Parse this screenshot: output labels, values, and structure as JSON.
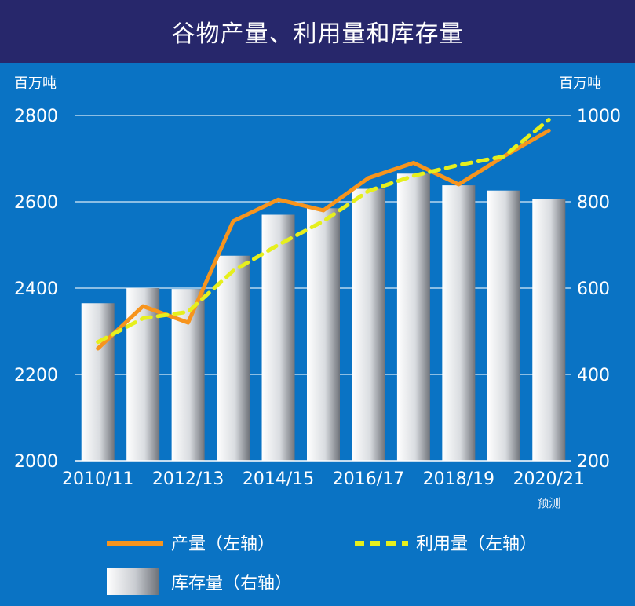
{
  "chart_data": {
    "type": "bar",
    "title": "谷物产量、利用量和库存量",
    "left_unit": "百万吨",
    "right_unit": "百万吨",
    "left_ylim": [
      2000,
      2800
    ],
    "right_ylim": [
      200,
      1000
    ],
    "left_ticks": [
      "2000",
      "2200",
      "2400",
      "2600",
      "2800"
    ],
    "right_ticks": [
      "200",
      "400",
      "600",
      "800",
      "1000"
    ],
    "grid": true,
    "legend_position": "bottom",
    "forecast_note": "预测",
    "x_tick_labels": [
      "2010/11",
      "2012/13",
      "2014/15",
      "2016/17",
      "2018/19",
      "2020/21"
    ],
    "categories": [
      "2010/11",
      "2011/12",
      "2012/13",
      "2013/14",
      "2014/15",
      "2015/16",
      "2016/17",
      "2017/18",
      "2018/19",
      "2019/20",
      "2020/21"
    ],
    "series": [
      {
        "name": "库存量（右轴）",
        "type": "bar",
        "axis": "right",
        "color": "#c8ccd2",
        "values": [
          565,
          600,
          598,
          675,
          770,
          785,
          830,
          865,
          838,
          826,
          806
        ]
      },
      {
        "name": "产量（左轴）",
        "type": "line",
        "axis": "left",
        "style": "solid",
        "color": "#f7941d",
        "values": [
          2260,
          2358,
          2320,
          2555,
          2605,
          2580,
          2655,
          2690,
          2640,
          2705,
          2765
        ]
      },
      {
        "name": "利用量（左轴）",
        "type": "line",
        "axis": "left",
        "style": "dashed",
        "color": "#e6ef1d",
        "values": [
          2275,
          2330,
          2345,
          2440,
          2500,
          2555,
          2625,
          2660,
          2685,
          2705,
          2790
        ]
      }
    ]
  }
}
